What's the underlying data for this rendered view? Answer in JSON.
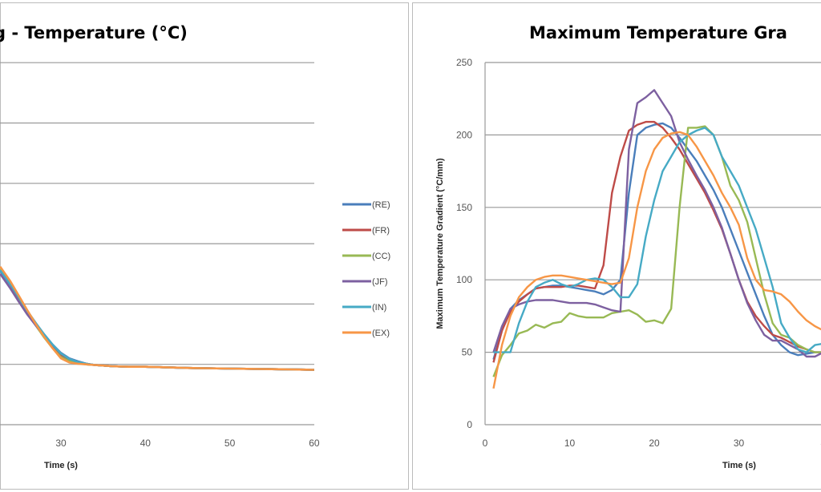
{
  "chart_data": [
    {
      "type": "line",
      "title": "g - Temperature (°C)",
      "xlabel": "Time (s)",
      "ylabel": "",
      "xlim": [
        22.8,
        60
      ],
      "x_ticks": [
        "30",
        "40",
        "50",
        "60"
      ],
      "grid": true,
      "legend_position": "right",
      "x": [
        22.8,
        24,
        25,
        26,
        27,
        28,
        29,
        30,
        31,
        32,
        33,
        34,
        35,
        36,
        38,
        40,
        45,
        50,
        55,
        60
      ],
      "series": [
        {
          "name": "(RE)",
          "color": "#4a7ebb",
          "values": [
            255,
            232,
            210,
            188,
            168,
            150,
            133,
            119,
            110,
            105,
            101,
            99,
            98,
            97,
            96,
            96,
            94,
            93,
            92,
            91
          ]
        },
        {
          "name": "(FR)",
          "color": "#be4b48",
          "values": [
            257,
            233,
            210,
            187,
            166,
            147,
            130,
            116,
            108,
            104,
            100,
            99,
            98,
            97,
            96,
            96,
            94,
            93,
            92,
            91
          ]
        },
        {
          "name": "(CC)",
          "color": "#98b954",
          "values": [
            258,
            234,
            211,
            187,
            165,
            145,
            127,
            112,
            105,
            102,
            100,
            99,
            98,
            97,
            96,
            96,
            94,
            93,
            92,
            91
          ]
        },
        {
          "name": "(JF)",
          "color": "#7d60a0",
          "values": [
            250,
            226,
            204,
            183,
            165,
            148,
            132,
            118,
            109,
            104,
            101,
            99,
            98,
            97,
            96,
            96,
            94,
            93,
            92,
            91
          ]
        },
        {
          "name": "(IN)",
          "color": "#46aac5",
          "values": [
            256,
            233,
            211,
            189,
            169,
            150,
            133,
            118,
            109,
            104,
            101,
            99,
            98,
            97,
            96,
            96,
            94,
            93,
            92,
            91
          ]
        },
        {
          "name": "(EX)",
          "color": "#f79646",
          "values": [
            262,
            238,
            214,
            190,
            167,
            146,
            127,
            110,
            103,
            101,
            100,
            99,
            98,
            97,
            96,
            96,
            94,
            93,
            92,
            91
          ]
        }
      ]
    },
    {
      "type": "line",
      "title": "Maximum Temperature Gra",
      "xlabel": "Time (s)",
      "ylabel": "Maximum Temperature Gradient (°C/mm)",
      "xlim": [
        0,
        40
      ],
      "ylim": [
        0,
        250
      ],
      "x_ticks": [
        "0",
        "10",
        "20",
        "30",
        "4"
      ],
      "y_ticks": [
        "0",
        "50",
        "100",
        "150",
        "200",
        "250"
      ],
      "grid": true,
      "x": [
        1,
        2,
        3,
        4,
        5,
        6,
        7,
        8,
        9,
        10,
        11,
        12,
        13,
        14,
        15,
        16,
        17,
        18,
        19,
        20,
        21,
        22,
        23,
        24,
        25,
        26,
        27,
        28,
        29,
        30,
        31,
        32,
        33,
        34,
        35,
        36,
        37,
        38,
        39,
        40
      ],
      "series": [
        {
          "name": "(RE)",
          "color": "#4a7ebb",
          "values": [
            45,
            65,
            80,
            86,
            90,
            94,
            95,
            96,
            96,
            95,
            94,
            93,
            92,
            90,
            93,
            100,
            160,
            200,
            205,
            207,
            208,
            205,
            198,
            190,
            182,
            172,
            162,
            150,
            135,
            120,
            105,
            90,
            75,
            62,
            55,
            50,
            48,
            49,
            50,
            50
          ]
        },
        {
          "name": "(FR)",
          "color": "#be4b48",
          "values": [
            43,
            65,
            78,
            85,
            90,
            94,
            95,
            95,
            95,
            96,
            96,
            95,
            94,
            110,
            160,
            185,
            203,
            207,
            209,
            209,
            205,
            198,
            190,
            180,
            170,
            160,
            148,
            135,
            118,
            100,
            85,
            75,
            68,
            62,
            60,
            57,
            54,
            52,
            50,
            50
          ]
        },
        {
          "name": "(CC)",
          "color": "#98b954",
          "values": [
            33,
            48,
            55,
            63,
            65,
            69,
            67,
            70,
            71,
            77,
            75,
            74,
            74,
            74,
            77,
            78,
            79,
            76,
            71,
            72,
            70,
            80,
            150,
            205,
            205,
            206,
            200,
            185,
            165,
            155,
            140,
            115,
            90,
            70,
            62,
            60,
            55,
            52,
            50,
            50
          ]
        },
        {
          "name": "(JF)",
          "color": "#7d60a0",
          "values": [
            50,
            68,
            80,
            83,
            85,
            86,
            86,
            86,
            85,
            84,
            84,
            84,
            83,
            81,
            79,
            78,
            190,
            222,
            226,
            231,
            222,
            213,
            195,
            183,
            172,
            162,
            150,
            136,
            118,
            100,
            84,
            72,
            62,
            58,
            58,
            55,
            52,
            47,
            47,
            50
          ]
        },
        {
          "name": "(IN)",
          "color": "#46aac5",
          "values": [
            50,
            50,
            50,
            70,
            85,
            95,
            98,
            100,
            97,
            95,
            97,
            100,
            101,
            100,
            95,
            88,
            88,
            97,
            130,
            155,
            175,
            185,
            195,
            200,
            203,
            205,
            200,
            185,
            175,
            165,
            150,
            135,
            115,
            95,
            70,
            60,
            52,
            50,
            55,
            56
          ]
        },
        {
          "name": "(EX)",
          "color": "#f79646",
          "values": [
            25,
            55,
            75,
            88,
            95,
            100,
            102,
            103,
            103,
            102,
            101,
            100,
            99,
            98,
            97,
            98,
            115,
            150,
            175,
            190,
            198,
            201,
            202,
            200,
            192,
            182,
            172,
            160,
            150,
            138,
            115,
            100,
            93,
            92,
            90,
            85,
            78,
            72,
            68,
            65
          ]
        }
      ]
    }
  ]
}
